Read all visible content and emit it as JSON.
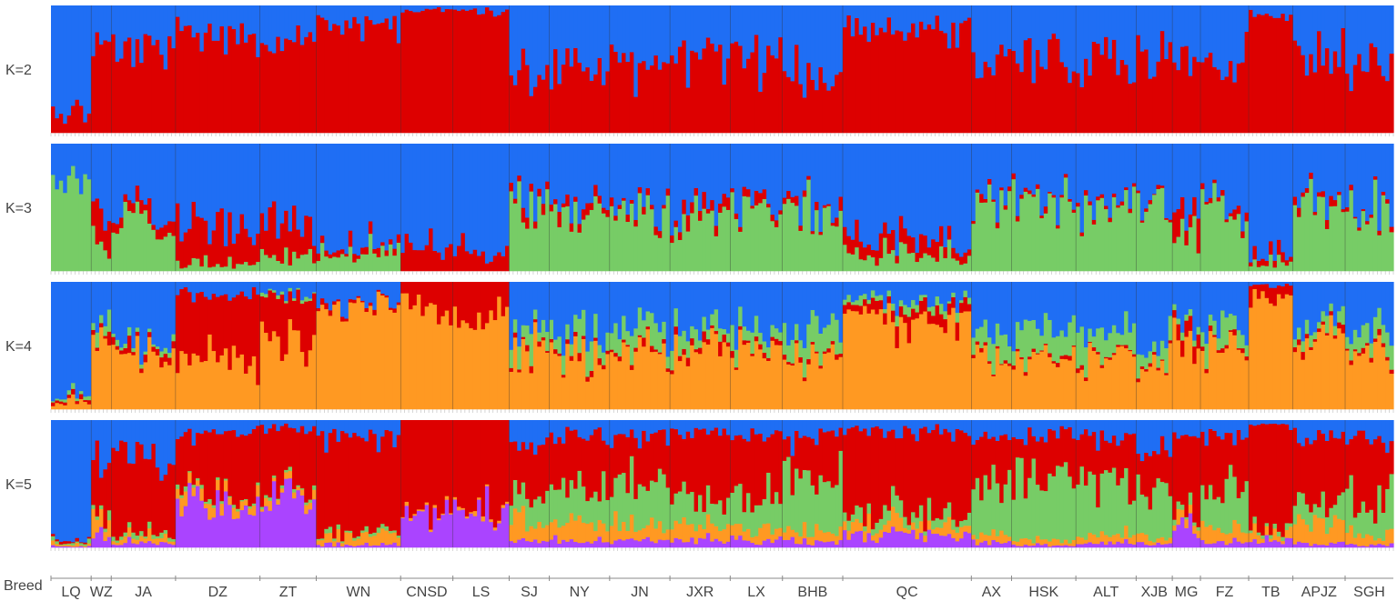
{
  "chart_data": {
    "type": "stacked_bar",
    "title": "",
    "xlabel": "Breed",
    "colors": {
      "blue": "#1f6ef4",
      "red": "#dd0000",
      "green": "#77cc66",
      "orange": "#ff9922",
      "purple": "#aa44ff"
    },
    "breeds": [
      {
        "name": "LQ",
        "n": 10
      },
      {
        "name": "WZ",
        "n": 5
      },
      {
        "name": "JA",
        "n": 16
      },
      {
        "name": "DZ",
        "n": 21
      },
      {
        "name": "ZT",
        "n": 14
      },
      {
        "name": "WN",
        "n": 21
      },
      {
        "name": "CNSD",
        "n": 13
      },
      {
        "name": "LS",
        "n": 14
      },
      {
        "name": "SJ",
        "n": 10
      },
      {
        "name": "NY",
        "n": 15
      },
      {
        "name": "JN",
        "n": 15
      },
      {
        "name": "JXR",
        "n": 15
      },
      {
        "name": "LX",
        "n": 13
      },
      {
        "name": "BHB",
        "n": 15
      },
      {
        "name": "QC",
        "n": 32
      },
      {
        "name": "AX",
        "n": 10
      },
      {
        "name": "HSK",
        "n": 16
      },
      {
        "name": "ALT",
        "n": 15
      },
      {
        "name": "XJB",
        "n": 9
      },
      {
        "name": "MG",
        "n": 7
      },
      {
        "name": "FZ",
        "n": 12
      },
      {
        "name": "TB",
        "n": 11
      },
      {
        "name": "APJZ",
        "n": 13
      },
      {
        "name": "SGH",
        "n": 12
      }
    ],
    "panels": [
      {
        "label": "K=2",
        "components": [
          "red",
          "blue"
        ],
        "breed_means": {
          "LQ": {
            "red": 0.15,
            "blue": 0.85
          },
          "WZ": {
            "red": 0.72,
            "blue": 0.28
          },
          "JA": {
            "red": 0.62,
            "blue": 0.38
          },
          "DZ": {
            "red": 0.8,
            "blue": 0.2
          },
          "ZT": {
            "red": 0.76,
            "blue": 0.24
          },
          "WN": {
            "red": 0.86,
            "blue": 0.14
          },
          "CNSD": {
            "red": 0.97,
            "blue": 0.03
          },
          "LS": {
            "red": 0.96,
            "blue": 0.04
          },
          "SJ": {
            "red": 0.5,
            "blue": 0.5
          },
          "NY": {
            "red": 0.52,
            "blue": 0.48
          },
          "JN": {
            "red": 0.55,
            "blue": 0.45
          },
          "JXR": {
            "red": 0.6,
            "blue": 0.4
          },
          "LX": {
            "red": 0.58,
            "blue": 0.42
          },
          "BHB": {
            "red": 0.48,
            "blue": 0.52
          },
          "QC": {
            "red": 0.82,
            "blue": 0.18
          },
          "AX": {
            "red": 0.5,
            "blue": 0.5
          },
          "HSK": {
            "red": 0.55,
            "blue": 0.45
          },
          "ALT": {
            "red": 0.58,
            "blue": 0.42
          },
          "XJB": {
            "red": 0.6,
            "blue": 0.4
          },
          "MG": {
            "red": 0.55,
            "blue": 0.45
          },
          "FZ": {
            "red": 0.55,
            "blue": 0.45
          },
          "TB": {
            "red": 0.92,
            "blue": 0.08
          },
          "APJZ": {
            "red": 0.62,
            "blue": 0.38
          },
          "SGH": {
            "red": 0.5,
            "blue": 0.5
          }
        }
      },
      {
        "label": "K=3",
        "components": [
          "green",
          "red",
          "blue"
        ],
        "breed_means": {
          "LQ": {
            "green": 0.7,
            "red": 0.0,
            "blue": 0.3
          },
          "WZ": {
            "green": 0.15,
            "red": 0.25,
            "blue": 0.6
          },
          "JA": {
            "green": 0.45,
            "red": 0.08,
            "blue": 0.47
          },
          "DZ": {
            "green": 0.05,
            "red": 0.3,
            "blue": 0.65
          },
          "ZT": {
            "green": 0.1,
            "red": 0.28,
            "blue": 0.62
          },
          "WN": {
            "green": 0.15,
            "red": 0.05,
            "blue": 0.8
          },
          "CNSD": {
            "green": 0.0,
            "red": 0.18,
            "blue": 0.82
          },
          "LS": {
            "green": 0.0,
            "red": 0.15,
            "blue": 0.85
          },
          "SJ": {
            "green": 0.55,
            "red": 0.05,
            "blue": 0.4
          },
          "NY": {
            "green": 0.52,
            "red": 0.06,
            "blue": 0.42
          },
          "JN": {
            "green": 0.48,
            "red": 0.05,
            "blue": 0.47
          },
          "JXR": {
            "green": 0.42,
            "red": 0.08,
            "blue": 0.5
          },
          "LX": {
            "green": 0.45,
            "red": 0.05,
            "blue": 0.5
          },
          "BHB": {
            "green": 0.5,
            "red": 0.04,
            "blue": 0.46
          },
          "QC": {
            "green": 0.12,
            "red": 0.12,
            "blue": 0.76
          },
          "AX": {
            "green": 0.55,
            "red": 0.03,
            "blue": 0.42
          },
          "HSK": {
            "green": 0.58,
            "red": 0.03,
            "blue": 0.39
          },
          "ALT": {
            "green": 0.5,
            "red": 0.03,
            "blue": 0.47
          },
          "XJB": {
            "green": 0.55,
            "red": 0.02,
            "blue": 0.43
          },
          "MG": {
            "green": 0.25,
            "red": 0.15,
            "blue": 0.6
          },
          "FZ": {
            "green": 0.5,
            "red": 0.04,
            "blue": 0.46
          },
          "TB": {
            "green": 0.05,
            "red": 0.05,
            "blue": 0.9
          },
          "APJZ": {
            "green": 0.58,
            "red": 0.04,
            "blue": 0.38
          },
          "SGH": {
            "green": 0.45,
            "red": 0.03,
            "blue": 0.52
          }
        }
      },
      {
        "label": "K=4",
        "components": [
          "orange",
          "red",
          "green",
          "blue"
        ],
        "breed_means": {
          "LQ": {
            "orange": 0.05,
            "red": 0.02,
            "green": 0.02,
            "blue": 0.91
          },
          "WZ": {
            "orange": 0.55,
            "red": 0.05,
            "green": 0.1,
            "blue": 0.3
          },
          "JA": {
            "orange": 0.5,
            "red": 0.05,
            "green": 0.03,
            "blue": 0.42
          },
          "DZ": {
            "orange": 0.4,
            "red": 0.5,
            "green": 0.0,
            "blue": 0.1
          },
          "ZT": {
            "orange": 0.55,
            "red": 0.35,
            "green": 0.02,
            "blue": 0.08
          },
          "WN": {
            "orange": 0.85,
            "red": 0.02,
            "green": 0.0,
            "blue": 0.13
          },
          "CNSD": {
            "orange": 0.8,
            "red": 0.2,
            "green": 0.0,
            "blue": 0.0
          },
          "LS": {
            "orange": 0.78,
            "red": 0.22,
            "green": 0.0,
            "blue": 0.0
          },
          "SJ": {
            "orange": 0.45,
            "red": 0.03,
            "green": 0.15,
            "blue": 0.37
          },
          "NY": {
            "orange": 0.45,
            "red": 0.03,
            "green": 0.15,
            "blue": 0.37
          },
          "JN": {
            "orange": 0.45,
            "red": 0.03,
            "green": 0.15,
            "blue": 0.37
          },
          "JXR": {
            "orange": 0.45,
            "red": 0.05,
            "green": 0.12,
            "blue": 0.38
          },
          "LX": {
            "orange": 0.48,
            "red": 0.03,
            "green": 0.14,
            "blue": 0.35
          },
          "BHB": {
            "orange": 0.4,
            "red": 0.03,
            "green": 0.2,
            "blue": 0.37
          },
          "QC": {
            "orange": 0.7,
            "red": 0.1,
            "green": 0.05,
            "blue": 0.15
          },
          "AX": {
            "orange": 0.4,
            "red": 0.02,
            "green": 0.2,
            "blue": 0.38
          },
          "HSK": {
            "orange": 0.4,
            "red": 0.02,
            "green": 0.2,
            "blue": 0.38
          },
          "ALT": {
            "orange": 0.42,
            "red": 0.02,
            "green": 0.18,
            "blue": 0.38
          },
          "XJB": {
            "orange": 0.35,
            "red": 0.02,
            "green": 0.15,
            "blue": 0.48
          },
          "MG": {
            "orange": 0.55,
            "red": 0.1,
            "green": 0.05,
            "blue": 0.3
          },
          "FZ": {
            "orange": 0.45,
            "red": 0.03,
            "green": 0.15,
            "blue": 0.37
          },
          "TB": {
            "orange": 0.9,
            "red": 0.08,
            "green": 0.0,
            "blue": 0.02
          },
          "APJZ": {
            "orange": 0.55,
            "red": 0.04,
            "green": 0.1,
            "blue": 0.31
          },
          "SGH": {
            "orange": 0.42,
            "red": 0.03,
            "green": 0.15,
            "blue": 0.4
          }
        }
      },
      {
        "label": "K=5",
        "components": [
          "purple",
          "orange",
          "green",
          "red",
          "blue"
        ],
        "breed_means": {
          "LQ": {
            "purple": 0.01,
            "orange": 0.02,
            "green": 0.02,
            "red": 0.02,
            "blue": 0.93
          },
          "WZ": {
            "purple": 0.1,
            "orange": 0.15,
            "green": 0.05,
            "red": 0.4,
            "blue": 0.3
          },
          "JA": {
            "purple": 0.04,
            "orange": 0.04,
            "green": 0.03,
            "red": 0.6,
            "blue": 0.29
          },
          "DZ": {
            "purple": 0.35,
            "orange": 0.08,
            "green": 0.02,
            "red": 0.45,
            "blue": 0.1
          },
          "ZT": {
            "purple": 0.38,
            "orange": 0.04,
            "green": 0.02,
            "red": 0.5,
            "blue": 0.06
          },
          "WN": {
            "purple": 0.02,
            "orange": 0.06,
            "green": 0.02,
            "red": 0.78,
            "blue": 0.12
          },
          "CNSD": {
            "purple": 0.25,
            "orange": 0.02,
            "green": 0.0,
            "red": 0.73,
            "blue": 0.0
          },
          "LS": {
            "purple": 0.28,
            "orange": 0.02,
            "green": 0.0,
            "red": 0.7,
            "blue": 0.0
          },
          "SJ": {
            "purple": 0.05,
            "orange": 0.15,
            "green": 0.25,
            "red": 0.4,
            "blue": 0.15
          },
          "NY": {
            "purple": 0.06,
            "orange": 0.15,
            "green": 0.25,
            "red": 0.42,
            "blue": 0.12
          },
          "JN": {
            "purple": 0.05,
            "orange": 0.12,
            "green": 0.3,
            "red": 0.4,
            "blue": 0.13
          },
          "JXR": {
            "purple": 0.06,
            "orange": 0.12,
            "green": 0.22,
            "red": 0.48,
            "blue": 0.12
          },
          "LX": {
            "purple": 0.05,
            "orange": 0.1,
            "green": 0.28,
            "red": 0.45,
            "blue": 0.12
          },
          "BHB": {
            "purple": 0.04,
            "orange": 0.08,
            "green": 0.4,
            "red": 0.35,
            "blue": 0.13
          },
          "QC": {
            "purple": 0.1,
            "orange": 0.08,
            "green": 0.08,
            "red": 0.66,
            "blue": 0.08
          },
          "AX": {
            "purple": 0.04,
            "orange": 0.06,
            "green": 0.4,
            "red": 0.38,
            "blue": 0.12
          },
          "HSK": {
            "purple": 0.02,
            "orange": 0.04,
            "green": 0.5,
            "red": 0.32,
            "blue": 0.12
          },
          "ALT": {
            "purple": 0.03,
            "orange": 0.05,
            "green": 0.42,
            "red": 0.36,
            "blue": 0.14
          },
          "XJB": {
            "purple": 0.03,
            "orange": 0.05,
            "green": 0.4,
            "red": 0.32,
            "blue": 0.2
          },
          "MG": {
            "purple": 0.15,
            "orange": 0.08,
            "green": 0.05,
            "red": 0.6,
            "blue": 0.12
          },
          "FZ": {
            "purple": 0.04,
            "orange": 0.1,
            "green": 0.35,
            "red": 0.4,
            "blue": 0.11
          },
          "TB": {
            "purple": 0.04,
            "orange": 0.05,
            "green": 0.03,
            "red": 0.85,
            "blue": 0.03
          },
          "APJZ": {
            "purple": 0.03,
            "orange": 0.2,
            "green": 0.15,
            "red": 0.47,
            "blue": 0.15
          },
          "SGH": {
            "purple": 0.02,
            "orange": 0.08,
            "green": 0.3,
            "red": 0.45,
            "blue": 0.15
          }
        }
      }
    ]
  }
}
